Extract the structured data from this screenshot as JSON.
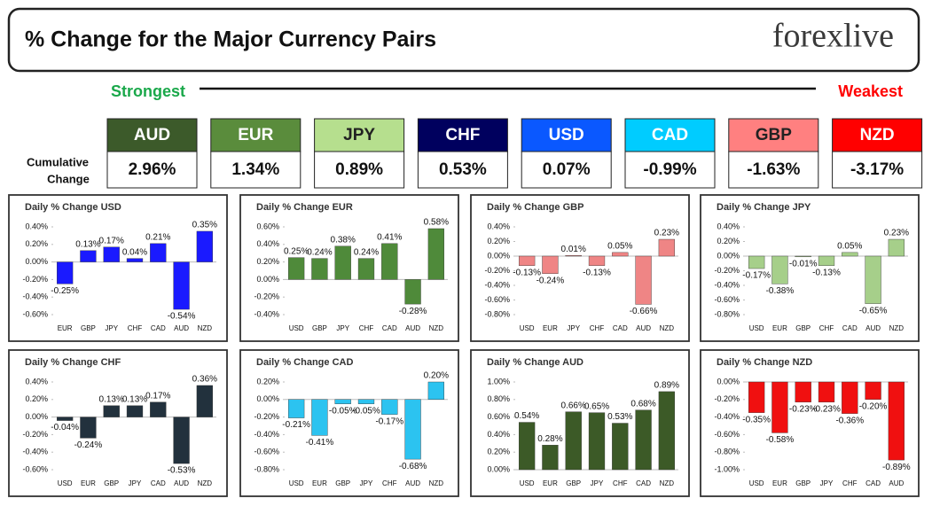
{
  "header": {
    "title": "% Change for the Major Currency Pairs",
    "logo": "forexlive"
  },
  "strength": {
    "strongest": "Strongest",
    "weakest": "Weakest",
    "label": [
      "Cumulative",
      "Change"
    ],
    "currencies": [
      {
        "name": "AUD",
        "value": "2.96%",
        "color": "#3c5a2a"
      },
      {
        "name": "EUR",
        "value": "1.34%",
        "color": "#5a8c3c"
      },
      {
        "name": "JPY",
        "value": "0.89%",
        "color": "#b6df8e"
      },
      {
        "name": "CHF",
        "value": "0.53%",
        "color": "#00005e"
      },
      {
        "name": "USD",
        "value": "0.07%",
        "color": "#0a58ff"
      },
      {
        "name": "CAD",
        "value": "-0.99%",
        "color": "#00ccff"
      },
      {
        "name": "GBP",
        "value": "-1.63%",
        "color": "#ff8080"
      },
      {
        "name": "NZD",
        "value": "-3.17%",
        "color": "#ff0000"
      }
    ]
  },
  "chart_data": [
    {
      "type": "bar",
      "title": "Daily % Change USD",
      "color": "#1a1aff",
      "categories": [
        "EUR",
        "GBP",
        "JPY",
        "CHF",
        "CAD",
        "AUD",
        "NZD"
      ],
      "values": [
        -0.25,
        0.13,
        0.17,
        0.04,
        0.21,
        -0.54,
        0.35
      ],
      "value_labels": [
        "-0.25%",
        "0.13%",
        "0.17%",
        "0.04%",
        "0.21%",
        "-0.54%",
        "0.35%"
      ],
      "ylim": [
        -0.6,
        0.4
      ],
      "yticks": [
        {
          "value": 0.4,
          "label": "0.40%"
        },
        {
          "value": 0.2,
          "label": "0.20%"
        },
        {
          "value": 0,
          "label": "0.00%"
        },
        {
          "value": -0.2,
          "label": "-0.20%"
        },
        {
          "value": -0.4,
          "label": "-0.40%"
        },
        {
          "value": -0.6,
          "label": "-0.60%"
        }
      ]
    },
    {
      "type": "bar",
      "title": "Daily % Change EUR",
      "color": "#4f8a3a",
      "categories": [
        "USD",
        "GBP",
        "JPY",
        "CHF",
        "CAD",
        "AUD",
        "NZD"
      ],
      "values": [
        0.25,
        0.24,
        0.38,
        0.24,
        0.41,
        -0.28,
        0.58
      ],
      "value_labels": [
        "0.25%",
        "0.24%",
        "0.38%",
        "0.24%",
        "0.41%",
        "-0.28%",
        "0.58%"
      ],
      "ylim": [
        -0.4,
        0.6
      ],
      "yticks": [
        {
          "value": 0.6,
          "label": "0.60%"
        },
        {
          "value": 0.4,
          "label": "0.40%"
        },
        {
          "value": 0.2,
          "label": "0.20%"
        },
        {
          "value": 0,
          "label": "0.00%"
        },
        {
          "value": -0.2,
          "label": "-0.20%"
        },
        {
          "value": -0.4,
          "label": "-0.40%"
        }
      ]
    },
    {
      "type": "bar",
      "title": "Daily % Change GBP",
      "color": "#ef8585",
      "categories": [
        "USD",
        "EUR",
        "JPY",
        "CHF",
        "CAD",
        "AUD",
        "NZD"
      ],
      "values": [
        -0.13,
        -0.24,
        0.01,
        -0.13,
        0.05,
        -0.66,
        0.23
      ],
      "value_labels": [
        "-0.13%",
        "-0.24%",
        "0.01%",
        "-0.13%",
        "0.05%",
        "-0.66%",
        "0.23%"
      ],
      "ylim": [
        -0.8,
        0.4
      ],
      "yticks": [
        {
          "value": 0.4,
          "label": "0.40%"
        },
        {
          "value": 0.2,
          "label": "0.20%"
        },
        {
          "value": 0,
          "label": "0.00%"
        },
        {
          "value": -0.2,
          "label": "-0.20%"
        },
        {
          "value": -0.4,
          "label": "-0.40%"
        },
        {
          "value": -0.6,
          "label": "-0.60%"
        },
        {
          "value": -0.8,
          "label": "-0.80%"
        }
      ]
    },
    {
      "type": "bar",
      "title": "Daily % Change JPY",
      "color": "#a6cf8a",
      "categories": [
        "USD",
        "EUR",
        "GBP",
        "CHF",
        "CAD",
        "AUD",
        "NZD"
      ],
      "values": [
        -0.17,
        -0.38,
        -0.01,
        -0.13,
        0.05,
        -0.65,
        0.23
      ],
      "value_labels": [
        "-0.17%",
        "-0.38%",
        "-0.01%",
        "-0.13%",
        "0.05%",
        "-0.65%",
        "0.23%"
      ],
      "ylim": [
        -0.8,
        0.4
      ],
      "yticks": [
        {
          "value": 0.4,
          "label": "0.40%"
        },
        {
          "value": 0.2,
          "label": "0.20%"
        },
        {
          "value": 0,
          "label": "0.00%"
        },
        {
          "value": -0.2,
          "label": "-0.20%"
        },
        {
          "value": -0.4,
          "label": "-0.40%"
        },
        {
          "value": -0.6,
          "label": "-0.60%"
        },
        {
          "value": -0.8,
          "label": "-0.80%"
        }
      ]
    },
    {
      "type": "bar",
      "title": "Daily % Change CHF",
      "color": "#22313d",
      "categories": [
        "USD",
        "EUR",
        "GBP",
        "JPY",
        "CAD",
        "AUD",
        "NZD"
      ],
      "values": [
        -0.04,
        -0.24,
        0.13,
        0.13,
        0.17,
        -0.53,
        0.36
      ],
      "value_labels": [
        "-0.04%",
        "-0.24%",
        "0.13%",
        "0.13%",
        "0.17%",
        "-0.53%",
        "0.36%"
      ],
      "ylim": [
        -0.6,
        0.4
      ],
      "yticks": [
        {
          "value": 0.4,
          "label": "0.40%"
        },
        {
          "value": 0.2,
          "label": "0.20%"
        },
        {
          "value": 0,
          "label": "0.00%"
        },
        {
          "value": -0.2,
          "label": "-0.20%"
        },
        {
          "value": -0.4,
          "label": "-0.40%"
        },
        {
          "value": -0.6,
          "label": "-0.60%"
        }
      ]
    },
    {
      "type": "bar",
      "title": "Daily % Change CAD",
      "color": "#2cc3f0",
      "categories": [
        "USD",
        "EUR",
        "GBP",
        "JPY",
        "CHF",
        "AUD",
        "NZD"
      ],
      "values": [
        -0.21,
        -0.41,
        -0.05,
        -0.05,
        -0.17,
        -0.68,
        0.2
      ],
      "value_labels": [
        "-0.21%",
        "-0.41%",
        "-0.05%",
        "-0.05%",
        "-0.17%",
        "-0.68%",
        "0.20%"
      ],
      "ylim": [
        -0.8,
        0.2
      ],
      "yticks": [
        {
          "value": 0.2,
          "label": "0.20%"
        },
        {
          "value": 0,
          "label": "0.00%"
        },
        {
          "value": -0.2,
          "label": "-0.20%"
        },
        {
          "value": -0.4,
          "label": "-0.40%"
        },
        {
          "value": -0.6,
          "label": "-0.60%"
        },
        {
          "value": -0.8,
          "label": "-0.80%"
        }
      ]
    },
    {
      "type": "bar",
      "title": "Daily % Change AUD",
      "color": "#3c5a27",
      "categories": [
        "USD",
        "EUR",
        "GBP",
        "JPY",
        "CHF",
        "CAD",
        "NZD"
      ],
      "values": [
        0.54,
        0.28,
        0.66,
        0.65,
        0.53,
        0.68,
        0.89
      ],
      "value_labels": [
        "0.54%",
        "0.28%",
        "0.66%",
        "0.65%",
        "0.53%",
        "0.68%",
        "0.89%"
      ],
      "ylim": [
        0,
        1
      ],
      "yticks": [
        {
          "value": 1,
          "label": "1.00%"
        },
        {
          "value": 0.8,
          "label": "0.80%"
        },
        {
          "value": 0.6,
          "label": "0.60%"
        },
        {
          "value": 0.4,
          "label": "0.40%"
        },
        {
          "value": 0.2,
          "label": "0.20%"
        },
        {
          "value": 0,
          "label": "0.00%"
        }
      ]
    },
    {
      "type": "bar",
      "title": "Daily % Change NZD",
      "color": "#f01010",
      "categories": [
        "USD",
        "EUR",
        "GBP",
        "JPY",
        "CHF",
        "CAD",
        "AUD"
      ],
      "values": [
        -0.35,
        -0.58,
        -0.23,
        -0.23,
        -0.36,
        -0.2,
        -0.89
      ],
      "value_labels": [
        "-0.35%",
        "-0.58%",
        "-0.23%",
        "-0.23%",
        "-0.36%",
        "-0.20%",
        "-0.89%"
      ],
      "ylim": [
        -1,
        0
      ],
      "yticks": [
        {
          "value": 0,
          "label": "0.00%"
        },
        {
          "value": -0.2,
          "label": "-0.20%"
        },
        {
          "value": -0.4,
          "label": "-0.40%"
        },
        {
          "value": -0.6,
          "label": "-0.60%"
        },
        {
          "value": -0.8,
          "label": "-0.80%"
        },
        {
          "value": -1,
          "label": "-1.00%"
        }
      ]
    }
  ]
}
